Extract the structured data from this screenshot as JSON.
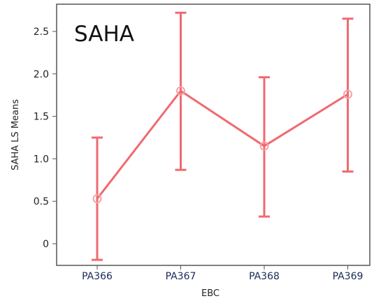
{
  "chart_data": {
    "type": "line",
    "title": "SAHA",
    "xlabel": "EBC",
    "ylabel": "SAHA LS Means",
    "categories": [
      "PA366",
      "PA367",
      "PA368",
      "PA369"
    ],
    "series": [
      {
        "values": [
          0.53,
          1.8,
          1.15,
          1.76
        ],
        "lower": [
          -0.19,
          0.87,
          0.32,
          0.85
        ],
        "upper": [
          1.25,
          2.72,
          1.96,
          2.65
        ]
      }
    ],
    "yticks": [
      0,
      0.5,
      1.0,
      1.5,
      2.0,
      2.5
    ],
    "ytick_labels": [
      "0",
      "0.5",
      "1.0",
      "1.5",
      "2.0",
      "2.5"
    ],
    "ylim": [
      -0.25,
      2.8
    ],
    "grid": false,
    "colors": {
      "series": "#f06a70",
      "marker": "#f5a3a6",
      "frame": "#555555"
    }
  }
}
